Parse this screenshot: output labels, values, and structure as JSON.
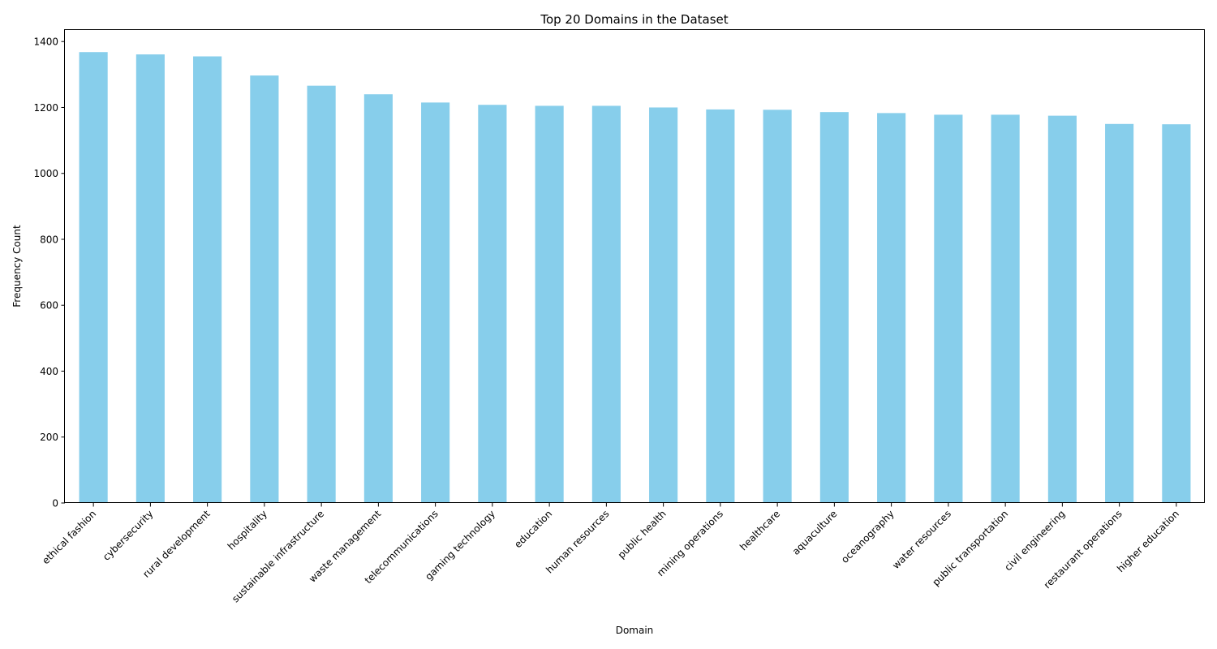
{
  "chart_data": {
    "type": "bar",
    "title": "Top 20 Domains in the Dataset",
    "xlabel": "Domain",
    "ylabel": "Frequency Count",
    "ylim": [
      0,
      1435
    ],
    "yticks": [
      0,
      200,
      400,
      600,
      800,
      1000,
      1200,
      1400
    ],
    "grid": false,
    "legend": "none",
    "bar_color": "#87ceeb",
    "categories": [
      "ethical fashion",
      "cybersecurity",
      "rural development",
      "hospitality",
      "sustainable infrastructure",
      "waste management",
      "telecommunications",
      "gaming technology",
      "education",
      "human resources",
      "public health",
      "mining operations",
      "healthcare",
      "aquaculture",
      "oceanography",
      "water resources",
      "public transportation",
      "civil engineering",
      "restaurant operations",
      "higher education"
    ],
    "values": [
      1368,
      1361,
      1355,
      1297,
      1266,
      1240,
      1215,
      1208,
      1205,
      1205,
      1200,
      1194,
      1193,
      1186,
      1183,
      1178,
      1178,
      1175,
      1150,
      1149
    ]
  }
}
